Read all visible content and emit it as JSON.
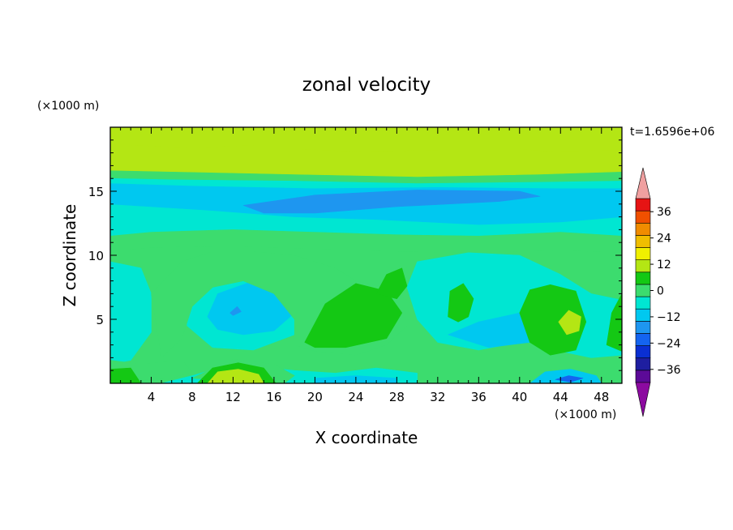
{
  "chart_data": {
    "type": "heatmap",
    "title": "zonal velocity",
    "xlabel": "X coordinate",
    "ylabel": "Z coordinate",
    "x_unit": "(×1000 m)",
    "y_unit": "(×1000 m)",
    "time_label": "t=1.6596e+06",
    "xlim": [
      0,
      50
    ],
    "ylim": [
      0,
      20
    ],
    "x_ticks": [
      4,
      8,
      12,
      16,
      20,
      24,
      28,
      32,
      36,
      40,
      44,
      48
    ],
    "y_ticks": [
      5,
      10,
      15
    ],
    "colorbar": {
      "levels": [
        -42,
        -36,
        -30,
        -24,
        -18,
        -12,
        -6,
        0,
        6,
        12,
        18,
        24,
        30,
        36,
        42
      ],
      "labels": [
        36,
        24,
        12,
        0,
        -12,
        -24,
        -36
      ],
      "colors": [
        "#5c0a98",
        "#1e1ea0",
        "#0a2fd2",
        "#1464f0",
        "#1e96f0",
        "#00c8f0",
        "#00e6d2",
        "#3cdc6e",
        "#14c814",
        "#b4e614",
        "#f0f000",
        "#f0be00",
        "#f08c00",
        "#f05000",
        "#e61414"
      ],
      "under_color": "#8c0aa0",
      "over_color": "#f0a0a0"
    },
    "base_value": 0,
    "layers": [
      {
        "value": 12,
        "polys": [
          [
            [
              0,
              20
            ],
            [
              50,
              20
            ],
            [
              50,
              16.5
            ],
            [
              42,
              16.3
            ],
            [
              30,
              16.1
            ],
            [
              18,
              16.3
            ],
            [
              6,
              16.5
            ],
            [
              0,
              16.6
            ]
          ]
        ]
      },
      {
        "value": 15,
        "polys": [
          [
            [
              2,
              20
            ],
            [
              14,
              20
            ],
            [
              14,
              18.6
            ],
            [
              8,
              18.4
            ],
            [
              2,
              18.6
            ]
          ],
          [
            [
              18,
              20
            ],
            [
              32,
              20
            ],
            [
              32,
              18.2
            ],
            [
              24,
              18.1
            ],
            [
              18,
              18.3
            ]
          ],
          [
            [
              40,
              20
            ],
            [
              49,
              20
            ],
            [
              49,
              18.2
            ],
            [
              43,
              18.1
            ],
            [
              40,
              18.3
            ]
          ]
        ]
      },
      {
        "value": 3,
        "polys": [
          [
            [
              0,
              16.6
            ],
            [
              6,
              16.5
            ],
            [
              18,
              16.3
            ],
            [
              30,
              16.1
            ],
            [
              42,
              16.3
            ],
            [
              50,
              16.5
            ],
            [
              50,
              15.8
            ],
            [
              42,
              15.7
            ],
            [
              30,
              15.6
            ],
            [
              18,
              15.8
            ],
            [
              6,
              15.9
            ],
            [
              0,
              16
            ]
          ]
        ]
      },
      {
        "value": -5,
        "polys": [
          [
            [
              0,
              16
            ],
            [
              6,
              15.9
            ],
            [
              18,
              15.8
            ],
            [
              30,
              15.6
            ],
            [
              42,
              15.7
            ],
            [
              50,
              15.8
            ],
            [
              50,
              11.5
            ],
            [
              44,
              11.8
            ],
            [
              36,
              11.5
            ],
            [
              28,
              11.6
            ],
            [
              20,
              11.8
            ],
            [
              12,
              12
            ],
            [
              4,
              11.8
            ],
            [
              0,
              11.5
            ]
          ]
        ]
      },
      {
        "value": -10,
        "polys": [
          [
            [
              0,
              15.6
            ],
            [
              8,
              15.4
            ],
            [
              20,
              15.2
            ],
            [
              32,
              15.3
            ],
            [
              44,
              15.2
            ],
            [
              50,
              15.2
            ],
            [
              50,
              13
            ],
            [
              44,
              12.6
            ],
            [
              36,
              12.4
            ],
            [
              26,
              12.8
            ],
            [
              18,
              13
            ],
            [
              10,
              13.5
            ],
            [
              4,
              13.8
            ],
            [
              0,
              14
            ]
          ]
        ]
      },
      {
        "value": -15,
        "polys": [
          [
            [
              13,
              13.9
            ],
            [
              20,
              14.7
            ],
            [
              30,
              15.1
            ],
            [
              40,
              15
            ],
            [
              42,
              14.6
            ],
            [
              38,
              14.2
            ],
            [
              28,
              13.8
            ],
            [
              20,
              13.3
            ],
            [
              15,
              13.3
            ]
          ]
        ]
      },
      {
        "value": 3,
        "polys": [
          [
            [
              0,
              11.5
            ],
            [
              4,
              11.8
            ],
            [
              12,
              12
            ],
            [
              20,
              11.8
            ],
            [
              28,
              11.6
            ],
            [
              36,
              11.5
            ],
            [
              44,
              11.8
            ],
            [
              50,
              11.5
            ],
            [
              50,
              10.2
            ],
            [
              44,
              10.4
            ],
            [
              36,
              10.2
            ],
            [
              28,
              10.3
            ],
            [
              20,
              10.5
            ],
            [
              12,
              10.7
            ],
            [
              4,
              10.6
            ],
            [
              0,
              10.3
            ]
          ]
        ]
      },
      {
        "value": -5,
        "polys": [
          [
            [
              0,
              9.5
            ],
            [
              3,
              9
            ],
            [
              4,
              7
            ],
            [
              4,
              4
            ],
            [
              2,
              1.8
            ],
            [
              0,
              1.5
            ]
          ],
          [
            [
              7.5,
              7.5
            ],
            [
              10,
              8.8
            ],
            [
              14,
              9.4
            ],
            [
              18,
              8.8
            ],
            [
              19.5,
              6.8
            ],
            [
              18,
              3.8
            ],
            [
              14,
              2.6
            ],
            [
              10,
              2.8
            ],
            [
              7.5,
              4.5
            ]
          ],
          [
            [
              30,
              9.5
            ],
            [
              35,
              10.2
            ],
            [
              40,
              10
            ],
            [
              44,
              8.5
            ],
            [
              47,
              7
            ],
            [
              50,
              6.5
            ],
            [
              50,
              2.2
            ],
            [
              47,
              2
            ],
            [
              44,
              2.5
            ],
            [
              42,
              4
            ],
            [
              40,
              3.2
            ],
            [
              36,
              2.6
            ],
            [
              32,
              3.2
            ],
            [
              30,
              5
            ],
            [
              29,
              7.5
            ]
          ],
          [
            [
              5,
              0
            ],
            [
              8,
              0.6
            ],
            [
              12,
              1.5
            ],
            [
              18,
              1
            ],
            [
              22,
              0.8
            ],
            [
              26,
              1.2
            ],
            [
              30,
              0.8
            ],
            [
              30,
              0
            ],
            [
              6,
              0
            ]
          ]
        ]
      },
      {
        "value": -10,
        "polys": [
          [
            [
              9.5,
              5.2
            ],
            [
              10.5,
              7
            ],
            [
              14,
              8
            ],
            [
              17,
              7.2
            ],
            [
              18,
              5.5
            ],
            [
              16,
              4.1
            ],
            [
              13,
              3.8
            ],
            [
              10.5,
              4.2
            ]
          ],
          [
            [
              33,
              3.8
            ],
            [
              36,
              4.8
            ],
            [
              40,
              5.5
            ],
            [
              43,
              4.6
            ],
            [
              41,
              3.2
            ],
            [
              37,
              2.8
            ]
          ],
          [
            [
              20,
              0
            ],
            [
              20,
              0.4
            ],
            [
              24,
              0.6
            ],
            [
              28,
              0.4
            ],
            [
              28,
              0
            ]
          ]
        ]
      },
      {
        "value": -15,
        "polys": [
          [
            [
              11.7,
              5.5
            ],
            [
              12.4,
              6
            ],
            [
              12.8,
              5.6
            ],
            [
              12,
              5.3
            ]
          ]
        ]
      },
      {
        "value": 3,
        "polys": [
          [
            [
              4,
              7
            ],
            [
              7,
              9.5
            ],
            [
              10,
              10.3
            ],
            [
              14,
              10.3
            ],
            [
              18,
              10
            ],
            [
              22,
              9
            ],
            [
              24,
              8
            ],
            [
              27,
              7.5
            ],
            [
              29,
              6.5
            ],
            [
              29,
              4.5
            ],
            [
              27,
              3
            ],
            [
              24,
              2.2
            ],
            [
              20,
              2.5
            ],
            [
              18,
              3
            ],
            [
              18,
              5
            ],
            [
              16,
              7
            ],
            [
              13,
              8
            ],
            [
              10,
              7.5
            ],
            [
              8,
              6
            ],
            [
              7,
              3.5
            ],
            [
              5,
              2
            ]
          ]
        ]
      },
      {
        "value": 9,
        "polys": [
          [
            [
              19,
              3.2
            ],
            [
              21,
              6.2
            ],
            [
              24,
              7.8
            ],
            [
              27,
              7.2
            ],
            [
              28.5,
              5.5
            ],
            [
              27,
              3.5
            ],
            [
              23,
              2.8
            ],
            [
              20,
              2.8
            ]
          ],
          [
            [
              26,
              7
            ],
            [
              27,
              8.5
            ],
            [
              28.5,
              9
            ],
            [
              29,
              7.6
            ],
            [
              28,
              6.6
            ]
          ],
          [
            [
              33,
              5.2
            ],
            [
              33.2,
              7.2
            ],
            [
              34.5,
              7.8
            ],
            [
              35.5,
              6.6
            ],
            [
              35,
              5.2
            ],
            [
              34,
              4.8
            ]
          ],
          [
            [
              40,
              5.5
            ],
            [
              41,
              7.3
            ],
            [
              43,
              7.7
            ],
            [
              45.5,
              7.2
            ],
            [
              46.5,
              4.8
            ],
            [
              45.5,
              2.6
            ],
            [
              43,
              2.2
            ],
            [
              41,
              3.2
            ]
          ],
          [
            [
              48.5,
              3
            ],
            [
              49,
              5.5
            ],
            [
              50,
              7
            ],
            [
              50,
              2.5
            ]
          ]
        ]
      },
      {
        "value": 15,
        "polys": [
          [
            [
              43.8,
              4.8
            ],
            [
              44.8,
              5.7
            ],
            [
              46,
              5.2
            ],
            [
              45.8,
              4.1
            ],
            [
              44.6,
              3.8
            ]
          ]
        ]
      },
      {
        "value": 3,
        "polys": [
          [
            [
              0,
              1.8
            ],
            [
              3,
              1.5
            ],
            [
              7,
              1.8
            ],
            [
              8,
              0.9
            ],
            [
              6,
              0.4
            ],
            [
              2,
              0.2
            ],
            [
              0,
              0.3
            ]
          ],
          [
            [
              8,
              0.4
            ],
            [
              12,
              1.9
            ],
            [
              16,
              1.5
            ],
            [
              18,
              0.6
            ],
            [
              17,
              0
            ]
          ]
        ]
      },
      {
        "value": 9,
        "polys": [
          [
            [
              8.5,
              0
            ],
            [
              10,
              1.2
            ],
            [
              12.5,
              1.6
            ],
            [
              15,
              1.2
            ],
            [
              16.2,
              0
            ]
          ],
          [
            [
              0,
              0
            ],
            [
              0,
              1.1
            ],
            [
              2,
              1.2
            ],
            [
              3,
              0
            ]
          ]
        ]
      },
      {
        "value": 15,
        "polys": [
          [
            [
              9.5,
              0
            ],
            [
              10.5,
              0.9
            ],
            [
              12.5,
              1.1
            ],
            [
              14.5,
              0.7
            ],
            [
              15,
              0
            ]
          ]
        ]
      },
      {
        "value": -10,
        "polys": [
          [
            [
              41,
              0
            ],
            [
              42.5,
              0.9
            ],
            [
              45,
              1.1
            ],
            [
              47.5,
              0.6
            ],
            [
              48,
              0
            ]
          ]
        ]
      },
      {
        "value": -20,
        "polys": [
          [
            [
              43.5,
              0.3
            ],
            [
              44.8,
              0.6
            ],
            [
              46.2,
              0.4
            ],
            [
              45,
              0.1
            ]
          ]
        ]
      }
    ]
  }
}
